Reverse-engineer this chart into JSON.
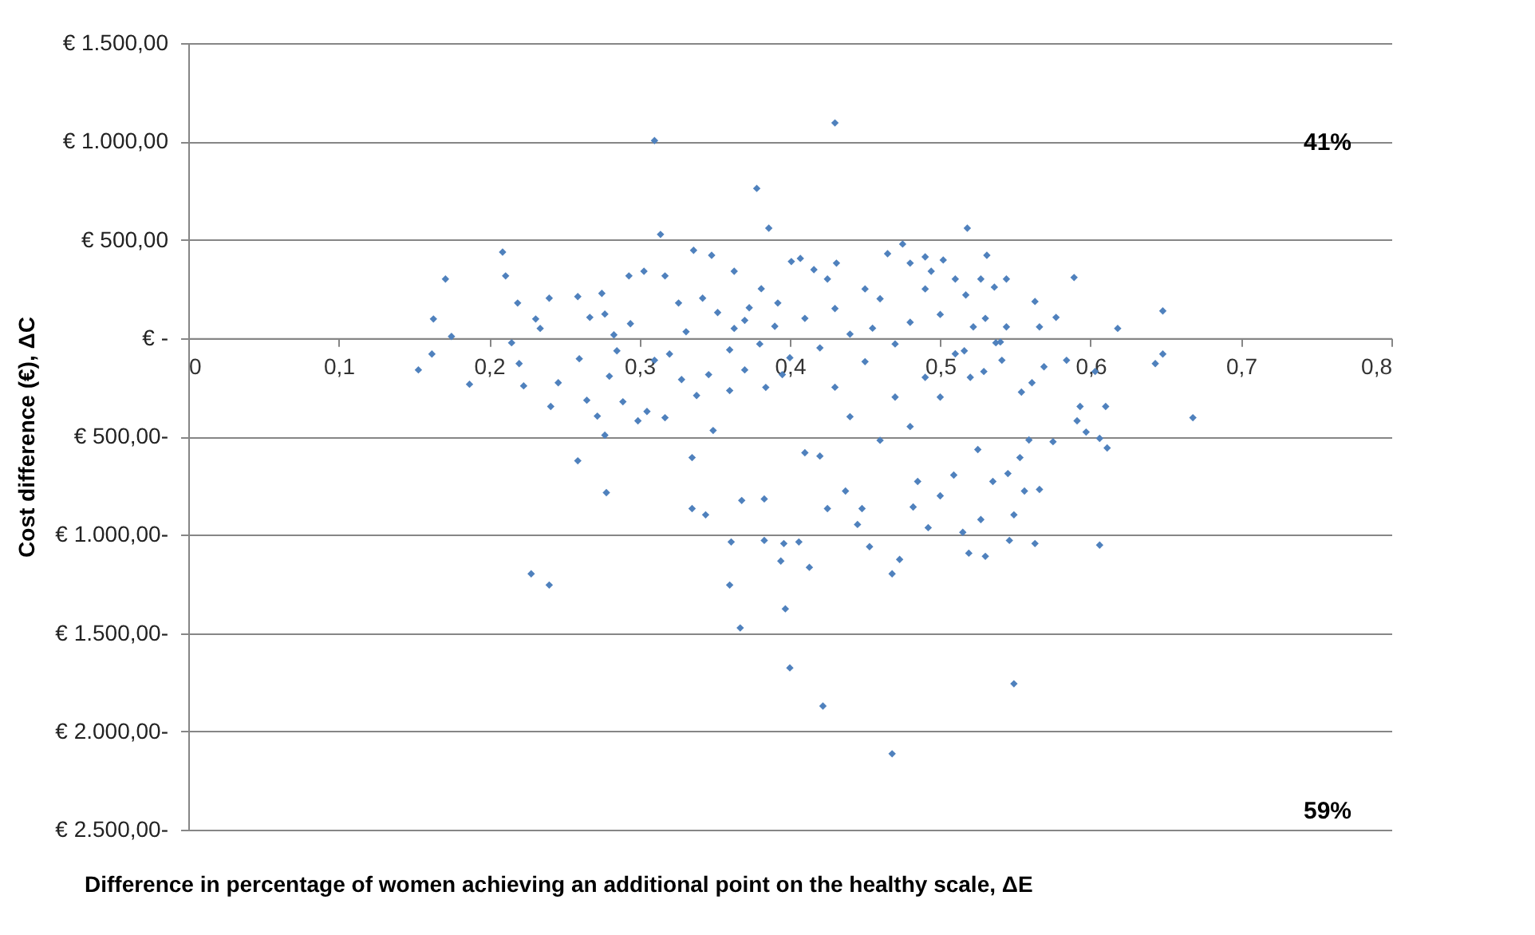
{
  "chart_data": {
    "type": "scatter",
    "xlabel": "Difference in percentage of women achieving an additional point on the healthy scale, ΔE",
    "ylabel": "Cost difference (€), ΔC",
    "x": [
      0.31,
      0.43,
      0.378,
      0.386,
      0.314,
      0.518,
      0.209,
      0.211,
      0.171,
      0.163,
      0.175,
      0.162,
      0.153,
      0.187,
      0.219,
      0.215,
      0.22,
      0.223,
      0.231,
      0.228,
      0.24,
      0.259,
      0.278,
      0.277,
      0.335,
      0.335,
      0.344,
      0.361,
      0.36,
      0.367,
      0.368,
      0.383,
      0.383,
      0.396,
      0.397,
      0.394,
      0.4,
      0.41,
      0.422,
      0.468,
      0.549,
      0.606,
      0.611,
      0.668,
      0.563,
      0.546,
      0.53,
      0.519,
      0.515,
      0.527,
      0.549,
      0.566,
      0.553,
      0.575,
      0.606,
      0.492,
      0.473,
      0.468,
      0.453,
      0.445,
      0.413,
      0.406,
      0.425,
      0.437,
      0.448,
      0.482,
      0.485,
      0.5,
      0.509,
      0.525,
      0.535,
      0.545,
      0.556,
      0.591,
      0.597,
      0.559,
      0.589,
      0.648,
      0.618,
      0.648,
      0.643,
      0.531,
      0.544,
      0.465,
      0.475,
      0.49,
      0.502,
      0.563,
      0.577,
      0.566,
      0.584,
      0.603,
      0.593,
      0.61,
      0.561,
      0.554,
      0.569,
      0.544,
      0.536,
      0.527,
      0.517,
      0.522,
      0.537,
      0.541,
      0.529,
      0.516,
      0.401,
      0.407,
      0.431,
      0.416,
      0.48,
      0.494,
      0.24,
      0.259,
      0.275,
      0.293,
      0.303,
      0.317,
      0.336,
      0.348,
      0.363,
      0.234,
      0.26,
      0.241,
      0.246,
      0.265,
      0.272,
      0.28,
      0.289,
      0.299,
      0.305,
      0.285,
      0.294,
      0.267,
      0.277,
      0.283,
      0.31,
      0.32,
      0.331,
      0.326,
      0.342,
      0.352,
      0.363,
      0.373,
      0.381,
      0.392,
      0.346,
      0.36,
      0.338,
      0.328,
      0.37,
      0.384,
      0.395,
      0.317,
      0.349,
      0.41,
      0.42,
      0.43,
      0.44,
      0.45,
      0.46,
      0.47,
      0.48,
      0.49,
      0.5,
      0.51,
      0.45,
      0.43,
      0.47,
      0.5,
      0.52,
      0.4,
      0.39,
      0.38,
      0.37,
      0.36,
      0.44,
      0.48,
      0.46,
      0.42,
      0.455,
      0.425,
      0.49,
      0.51,
      0.53,
      0.54
    ],
    "values": [
      1004,
      1094,
      761,
      559,
      527,
      559,
      437,
      316,
      300,
      97,
      8,
      -81,
      -162,
      -235,
      178,
      -24,
      -130,
      -243,
      97,
      -1199,
      -1256,
      -624,
      -786,
      -494,
      -608,
      -867,
      -899,
      -1037,
      -1256,
      -1474,
      -826,
      -1029,
      -818,
      -1045,
      -1377,
      -1134,
      -1677,
      -583,
      -1871,
      -2114,
      -1758,
      -1053,
      -559,
      -405,
      -1045,
      -1029,
      -1110,
      -1094,
      -988,
      -923,
      -899,
      -770,
      -608,
      -527,
      -510,
      -964,
      -1126,
      -1199,
      -1061,
      -948,
      -1166,
      -1037,
      -867,
      -778,
      -867,
      -859,
      -729,
      -802,
      -697,
      -567,
      -729,
      -689,
      -778,
      -421,
      -478,
      -518,
      308,
      138,
      49,
      -81,
      -130,
      421,
      300,
      429,
      478,
      413,
      397,
      186,
      105,
      57,
      -113,
      -170,
      -348,
      -348,
      -227,
      -275,
      -146,
      57,
      259,
      300,
      219,
      57,
      -24,
      -113,
      -170,
      -65,
      389,
      405,
      381,
      348,
      381,
      340,
      203,
      211,
      227,
      316,
      340,
      316,
      446,
      421,
      340,
      49,
      -105,
      -348,
      -227,
      -316,
      -397,
      -194,
      -324,
      -421,
      -373,
      -65,
      73,
      105,
      122,
      16,
      -113,
      -81,
      32,
      178,
      203,
      130,
      49,
      154,
      251,
      178,
      -186,
      -267,
      -292,
      -211,
      -162,
      -251,
      -186,
      -405,
      -470,
      100,
      -50,
      150,
      20,
      -120,
      200,
      -30,
      80,
      -200,
      120,
      -80,
      250,
      -250,
      -300,
      -300,
      -200,
      -100,
      60,
      -30,
      90,
      -60,
      -400,
      -450,
      -520,
      -600,
      50,
      300,
      250,
      300,
      100,
      -20
    ],
    "color": "#4f81bd",
    "marker": "diamond",
    "xlim": [
      0,
      0.8
    ],
    "xticks": [
      0,
      {
        "value": 0.1,
        "label": "0,1"
      },
      {
        "value": 0.2,
        "label": "0,2"
      },
      {
        "value": 0.3,
        "label": "0,3"
      },
      {
        "value": 0.4,
        "label": "0,4"
      },
      {
        "value": 0.5,
        "label": "0,5"
      },
      {
        "value": 0.6,
        "label": "0,6"
      },
      {
        "value": 0.7,
        "label": "0,7"
      },
      {
        "value": 0.8,
        "label": "0,8"
      }
    ],
    "ylim": [
      -2500,
      1500
    ],
    "yticks": [
      {
        "value": 1500,
        "label": "€ 1.500,00"
      },
      {
        "value": 1000,
        "label": "€ 1.000,00"
      },
      {
        "value": 500,
        "label": "€ 500,00"
      },
      {
        "value": 0,
        "label": "€ -"
      },
      {
        "value": -500,
        "label": "€ 500,00-"
      },
      {
        "value": -1000,
        "label": "€ 1.000,00-"
      },
      {
        "value": -1500,
        "label": "€ 1.500,00-"
      },
      {
        "value": -2000,
        "label": "€ 2.000,00-"
      },
      {
        "value": -2500,
        "label": "€ 2.500,00-"
      }
    ],
    "grid": "y",
    "annotations": [
      "41%",
      "59%"
    ]
  }
}
